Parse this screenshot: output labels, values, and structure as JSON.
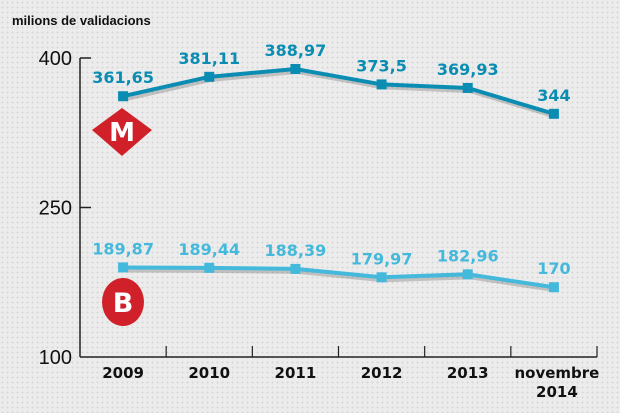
{
  "chart_data": {
    "type": "line",
    "ylabel": "milions de validacions",
    "ylim": [
      100,
      400
    ],
    "yticks": [
      "400",
      "250",
      "100"
    ],
    "ytick_values": [
      400,
      250,
      100
    ],
    "categories": [
      "2009",
      "2010",
      "2011",
      "2012",
      "2013",
      "novembre 2014"
    ],
    "category_lines": [
      [
        "2009"
      ],
      [
        "2010"
      ],
      [
        "2011"
      ],
      [
        "2012"
      ],
      [
        "2013"
      ],
      [
        "novembre",
        "2014"
      ]
    ],
    "grid": false,
    "series": [
      {
        "logo": "metro-M-logo",
        "logo_text": "M",
        "color": "#0b8db3",
        "values": [
          361.65,
          381.11,
          388.97,
          373.5,
          369.93,
          344
        ],
        "labels": [
          "361,65",
          "381,11",
          "388,97",
          "373,5",
          "369,93",
          "344"
        ]
      },
      {
        "logo": "bus-B-logo",
        "logo_text": "B",
        "color": "#45b9db",
        "values": [
          189.87,
          189.44,
          188.39,
          179.97,
          182.96,
          170
        ],
        "labels": [
          "189,87",
          "189,44",
          "188,39",
          "179,97",
          "182,96",
          "170"
        ]
      }
    ],
    "logo_color": "#d0202a"
  }
}
